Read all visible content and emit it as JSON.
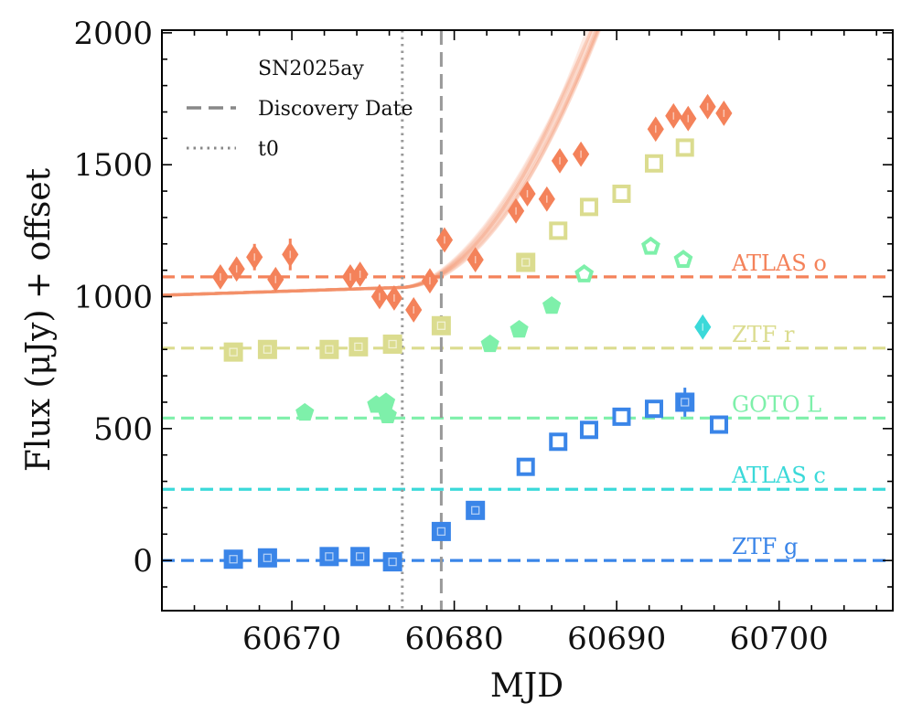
{
  "chart_data": {
    "type": "scatter",
    "object_name": "SN2025ay",
    "xlabel": "MJD",
    "ylabel": "Flux (μJy) + offset",
    "xlim": [
      60662,
      60707
    ],
    "ylim": [
      -190,
      2010
    ],
    "xticks": [
      60670,
      60680,
      60690,
      60700
    ],
    "xtick_labels": [
      "60670",
      "60680",
      "60690",
      "60700"
    ],
    "yticks": [
      0,
      500,
      1000,
      1500,
      2000
    ],
    "ytick_labels": [
      "0",
      "500",
      "1000",
      "1500",
      "2000"
    ],
    "discovery_date": 60679.2,
    "t0": 60676.8,
    "legend": {
      "title": "SN2025ay",
      "entries": [
        {
          "label": "Discovery Date",
          "style": "dashed"
        },
        {
          "label": "t0",
          "style": "dotted"
        }
      ]
    },
    "series": [
      {
        "name": "ATLAS o",
        "marker": "diamond",
        "color": "#f4825a",
        "offset": 1075,
        "points": [
          {
            "x": 60665.6,
            "y": 1075,
            "err": 25,
            "lim": false
          },
          {
            "x": 60666.6,
            "y": 1105,
            "err": 30,
            "lim": false
          },
          {
            "x": 60667.7,
            "y": 1150,
            "err": 50,
            "lim": false
          },
          {
            "x": 60669.0,
            "y": 1065,
            "err": 25,
            "lim": false
          },
          {
            "x": 60669.9,
            "y": 1160,
            "err": 60,
            "lim": false
          },
          {
            "x": 60673.6,
            "y": 1075,
            "err": 25,
            "lim": false
          },
          {
            "x": 60674.2,
            "y": 1085,
            "err": 25,
            "lim": false
          },
          {
            "x": 60675.4,
            "y": 1000,
            "err": 20,
            "lim": false
          },
          {
            "x": 60676.3,
            "y": 995,
            "err": 20,
            "lim": false
          },
          {
            "x": 60677.5,
            "y": 950,
            "err": 20,
            "lim": false
          },
          {
            "x": 60678.5,
            "y": 1060,
            "err": 20,
            "lim": false
          },
          {
            "x": 60679.4,
            "y": 1215,
            "err": 20,
            "lim": false
          },
          {
            "x": 60681.3,
            "y": 1140,
            "err": 20,
            "lim": false
          },
          {
            "x": 60683.8,
            "y": 1325,
            "err": 20,
            "lim": false
          },
          {
            "x": 60684.5,
            "y": 1390,
            "err": 20,
            "lim": false
          },
          {
            "x": 60685.7,
            "y": 1370,
            "err": 20,
            "lim": false
          },
          {
            "x": 60686.5,
            "y": 1515,
            "err": 20,
            "lim": false
          },
          {
            "x": 60687.8,
            "y": 1540,
            "err": 20,
            "lim": false
          },
          {
            "x": 60692.4,
            "y": 1635,
            "err": 20,
            "lim": false
          },
          {
            "x": 60693.5,
            "y": 1685,
            "err": 20,
            "lim": false
          },
          {
            "x": 60694.4,
            "y": 1675,
            "err": 20,
            "lim": false
          },
          {
            "x": 60695.6,
            "y": 1720,
            "err": 20,
            "lim": false
          },
          {
            "x": 60696.6,
            "y": 1695,
            "err": 20,
            "lim": false
          }
        ]
      },
      {
        "name": "ZTF r",
        "marker": "square",
        "color": "#dbdc8f",
        "offset": 805,
        "points": [
          {
            "x": 60666.4,
            "y": 790,
            "err": 15,
            "lim": false
          },
          {
            "x": 60668.5,
            "y": 800,
            "err": 15,
            "lim": false
          },
          {
            "x": 60672.3,
            "y": 800,
            "err": 35,
            "lim": false
          },
          {
            "x": 60674.1,
            "y": 810,
            "err": 15,
            "lim": false
          },
          {
            "x": 60676.2,
            "y": 820,
            "err": 15,
            "lim": false
          },
          {
            "x": 60679.2,
            "y": 890,
            "err": 15,
            "lim": false
          },
          {
            "x": 60684.4,
            "y": 1130,
            "err": 15,
            "lim": false
          },
          {
            "x": 60686.4,
            "y": 1250,
            "err": 15,
            "lim": true
          },
          {
            "x": 60688.3,
            "y": 1340,
            "err": 15,
            "lim": true
          },
          {
            "x": 60690.3,
            "y": 1390,
            "err": 15,
            "lim": true
          },
          {
            "x": 60692.3,
            "y": 1505,
            "err": 15,
            "lim": true
          },
          {
            "x": 60694.2,
            "y": 1565,
            "err": 15,
            "lim": true
          }
        ]
      },
      {
        "name": "GOTO L",
        "marker": "pentagon",
        "color": "#7ef0aa",
        "offset": 540,
        "points": [
          {
            "x": 60670.8,
            "y": 560,
            "err": 10,
            "lim": false
          },
          {
            "x": 60675.2,
            "y": 590,
            "err": 10,
            "lim": false
          },
          {
            "x": 60675.8,
            "y": 600,
            "err": 10,
            "lim": false
          },
          {
            "x": 60675.9,
            "y": 550,
            "err": 10,
            "lim": false
          },
          {
            "x": 60682.2,
            "y": 820,
            "err": 10,
            "lim": false
          },
          {
            "x": 60684.0,
            "y": 875,
            "err": 10,
            "lim": false
          },
          {
            "x": 60686.0,
            "y": 965,
            "err": 10,
            "lim": false
          },
          {
            "x": 60688.0,
            "y": 1085,
            "err": 10,
            "lim": true
          },
          {
            "x": 60692.1,
            "y": 1190,
            "err": 10,
            "lim": true
          },
          {
            "x": 60694.1,
            "y": 1140,
            "err": 10,
            "lim": true
          }
        ]
      },
      {
        "name": "ATLAS c",
        "marker": "diamond",
        "color": "#3bd9d9",
        "offset": 270,
        "points": [
          {
            "x": 60695.3,
            "y": 885,
            "err": 30,
            "lim": false
          }
        ]
      },
      {
        "name": "ZTF g",
        "marker": "square",
        "color": "#3a85e8",
        "offset": 0,
        "points": [
          {
            "x": 60666.4,
            "y": 5,
            "err": 15,
            "lim": false
          },
          {
            "x": 60668.5,
            "y": 10,
            "err": 15,
            "lim": false
          },
          {
            "x": 60672.3,
            "y": 15,
            "err": 15,
            "lim": false
          },
          {
            "x": 60674.2,
            "y": 15,
            "err": 15,
            "lim": false
          },
          {
            "x": 60676.2,
            "y": -5,
            "err": 15,
            "lim": false
          },
          {
            "x": 60679.2,
            "y": 110,
            "err": 15,
            "lim": false
          },
          {
            "x": 60681.3,
            "y": 190,
            "err": 15,
            "lim": false
          },
          {
            "x": 60684.4,
            "y": 355,
            "err": 15,
            "lim": true
          },
          {
            "x": 60686.4,
            "y": 450,
            "err": 15,
            "lim": true
          },
          {
            "x": 60688.3,
            "y": 495,
            "err": 15,
            "lim": true
          },
          {
            "x": 60690.3,
            "y": 545,
            "err": 15,
            "lim": true
          },
          {
            "x": 60692.3,
            "y": 575,
            "err": 15,
            "lim": true
          },
          {
            "x": 60694.2,
            "y": 600,
            "err": 55,
            "lim": false
          },
          {
            "x": 60696.3,
            "y": 515,
            "err": 15,
            "lim": true
          }
        ]
      }
    ],
    "fit": {
      "series": "ATLAS o",
      "color": "#f4825a",
      "x_start": 60662,
      "x_end": 60690,
      "t0": 60676.8,
      "baseline": 1035,
      "baseline_slope": 2.0,
      "curves": [
        {
          "amp": 7.3,
          "exp": 1.95
        },
        {
          "amp": 8.0,
          "exp": 1.92
        },
        {
          "amp": 8.8,
          "exp": 1.88
        },
        {
          "amp": 9.6,
          "exp": 1.85
        },
        {
          "amp": 10.5,
          "exp": 1.82
        },
        {
          "amp": 11.2,
          "exp": 1.8
        },
        {
          "amp": 6.5,
          "exp": 2.0
        },
        {
          "amp": 12.0,
          "exp": 1.78
        },
        {
          "amp": 5.9,
          "exp": 2.05
        },
        {
          "amp": 13.0,
          "exp": 1.75
        },
        {
          "amp": 7.7,
          "exp": 1.98
        },
        {
          "amp": 9.0,
          "exp": 1.9
        }
      ]
    }
  }
}
